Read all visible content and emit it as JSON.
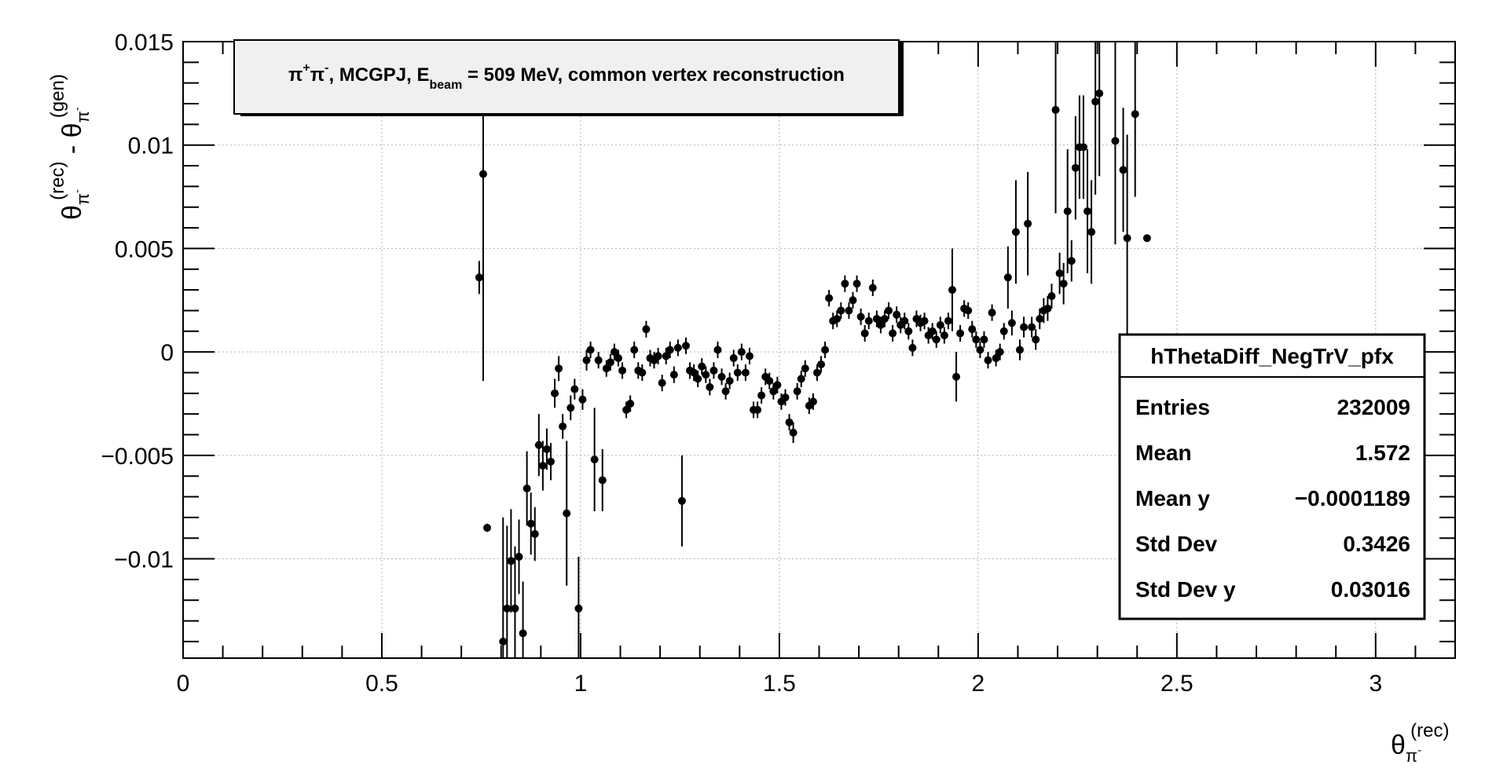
{
  "chart_data": {
    "type": "scatter",
    "title": "π⁺π⁻, MCGPJ, E_beam = 509 MeV, common vertex reconstruction",
    "title_parts": {
      "pre": "π",
      "sup1": "+",
      "mid1": "π",
      "sup2": "-",
      "mid2": ", MCGPJ, E",
      "sub": "beam",
      "post": " = 509 MeV, common vertex reconstruction"
    },
    "xlabel": {
      "base": "θ",
      "sub": "π",
      "subsup": "-",
      "sup": "(rec)"
    },
    "ylabel": {
      "base1": "θ",
      "sub1": "π",
      "subsup1": "-",
      "sup1": "(rec)",
      "minus": " - ",
      "base2": "θ",
      "sub2": "π",
      "subsup2": "-",
      "sup2": "(gen)"
    },
    "xlim": [
      0,
      3.2
    ],
    "ylim": [
      -0.0148,
      0.015
    ],
    "grid": true,
    "x_ticks": [
      0,
      0.5,
      1,
      1.5,
      2,
      2.5,
      3
    ],
    "x_tick_labels": [
      "0",
      "0.5",
      "1",
      "1.5",
      "2",
      "2.5",
      "3"
    ],
    "y_ticks": [
      -0.01,
      -0.005,
      0,
      0.005,
      0.01,
      0.015
    ],
    "y_tick_labels": [
      "−0.01",
      "−0.005",
      "0",
      "0.005",
      "0.01",
      "0.015"
    ],
    "stats_box": {
      "name": "hThetaDiff_NegTrV_pfx",
      "rows": [
        {
          "label": "Entries",
          "value": "232009"
        },
        {
          "label": "Mean",
          "value": "1.572"
        },
        {
          "label": "Mean y",
          "value": "−0.0001189"
        },
        {
          "label": "Std Dev",
          "value": "0.3426"
        },
        {
          "label": "Std Dev y",
          "value": "0.03016"
        }
      ]
    },
    "points": [
      [
        0.745,
        0.0036,
        0.0008
      ],
      [
        0.755,
        0.0086,
        0.01
      ],
      [
        0.765,
        -0.0085,
        0.0002
      ],
      [
        0.805,
        -0.014,
        0.006
      ],
      [
        0.815,
        -0.0124,
        0.004
      ],
      [
        0.825,
        -0.0101,
        0.0025
      ],
      [
        0.835,
        -0.0124,
        0.003
      ],
      [
        0.845,
        -0.0099,
        0.0018
      ],
      [
        0.855,
        -0.0136,
        0.0025
      ],
      [
        0.865,
        -0.0066,
        0.0018
      ],
      [
        0.875,
        -0.0083,
        0.0015
      ],
      [
        0.885,
        -0.0088,
        0.0013
      ],
      [
        0.895,
        -0.0045,
        0.0015
      ],
      [
        0.905,
        -0.0055,
        0.0012
      ],
      [
        0.915,
        -0.0047,
        0.001
      ],
      [
        0.925,
        -0.0053,
        0.0009
      ],
      [
        0.935,
        -0.002,
        0.0007
      ],
      [
        0.945,
        -0.0008,
        0.0006
      ],
      [
        0.955,
        -0.0036,
        0.0006
      ],
      [
        0.965,
        -0.0078,
        0.0035
      ],
      [
        0.975,
        -0.0027,
        0.0006
      ],
      [
        0.985,
        -0.0018,
        0.0005
      ],
      [
        0.995,
        -0.0124,
        0.0025
      ],
      [
        1.005,
        -0.0023,
        0.0005
      ],
      [
        1.015,
        -0.0004,
        0.0005
      ],
      [
        1.025,
        0.0001,
        0.0004
      ],
      [
        1.035,
        -0.0052,
        0.0025
      ],
      [
        1.045,
        -0.0004,
        0.0004
      ],
      [
        1.055,
        -0.0062,
        0.0015
      ],
      [
        1.065,
        -0.0008,
        0.0004
      ],
      [
        1.075,
        -0.0005,
        0.0004
      ],
      [
        1.085,
        0.0,
        0.0004
      ],
      [
        1.095,
        -0.0003,
        0.0004
      ],
      [
        1.105,
        -0.0009,
        0.0004
      ],
      [
        1.115,
        -0.0028,
        0.0004
      ],
      [
        1.125,
        -0.0025,
        0.0004
      ],
      [
        1.135,
        0.0001,
        0.0004
      ],
      [
        1.145,
        -0.0009,
        0.0004
      ],
      [
        1.155,
        -0.001,
        0.0004
      ],
      [
        1.165,
        0.0011,
        0.0004
      ],
      [
        1.175,
        -0.0003,
        0.0004
      ],
      [
        1.185,
        -0.0004,
        0.0004
      ],
      [
        1.195,
        -0.0002,
        0.0004
      ],
      [
        1.205,
        -0.0015,
        0.0004
      ],
      [
        1.215,
        -0.0002,
        0.0004
      ],
      [
        1.225,
        0.0001,
        0.0004
      ],
      [
        1.235,
        -0.0011,
        0.0004
      ],
      [
        1.245,
        0.0002,
        0.0004
      ],
      [
        1.255,
        -0.0072,
        0.0022
      ],
      [
        1.265,
        0.0003,
        0.0004
      ],
      [
        1.275,
        -0.0009,
        0.0004
      ],
      [
        1.285,
        -0.001,
        0.0004
      ],
      [
        1.295,
        -0.0013,
        0.0004
      ],
      [
        1.305,
        -0.0007,
        0.0004
      ],
      [
        1.315,
        -0.0011,
        0.0004
      ],
      [
        1.325,
        -0.0017,
        0.0004
      ],
      [
        1.335,
        -0.0009,
        0.0004
      ],
      [
        1.345,
        0.0001,
        0.0004
      ],
      [
        1.355,
        -0.0012,
        0.0004
      ],
      [
        1.365,
        -0.0019,
        0.0004
      ],
      [
        1.375,
        -0.0014,
        0.0004
      ],
      [
        1.385,
        -0.0003,
        0.0004
      ],
      [
        1.395,
        -0.001,
        0.0004
      ],
      [
        1.405,
        0.0,
        0.0004
      ],
      [
        1.415,
        -0.001,
        0.0004
      ],
      [
        1.425,
        -0.0002,
        0.0004
      ],
      [
        1.435,
        -0.0028,
        0.0004
      ],
      [
        1.445,
        -0.0028,
        0.0004
      ],
      [
        1.455,
        -0.0021,
        0.0004
      ],
      [
        1.465,
        -0.0012,
        0.0004
      ],
      [
        1.475,
        -0.0014,
        0.0004
      ],
      [
        1.485,
        -0.0019,
        0.0004
      ],
      [
        1.495,
        -0.0016,
        0.0004
      ],
      [
        1.505,
        -0.0024,
        0.0004
      ],
      [
        1.515,
        -0.0022,
        0.0004
      ],
      [
        1.525,
        -0.0034,
        0.0004
      ],
      [
        1.535,
        -0.0039,
        0.0005
      ],
      [
        1.545,
        -0.0019,
        0.0004
      ],
      [
        1.555,
        -0.0013,
        0.0004
      ],
      [
        1.565,
        -0.0008,
        0.0004
      ],
      [
        1.575,
        -0.0026,
        0.0004
      ],
      [
        1.585,
        -0.0024,
        0.0004
      ],
      [
        1.595,
        -0.001,
        0.0004
      ],
      [
        1.605,
        -0.0006,
        0.0004
      ],
      [
        1.615,
        0.0001,
        0.0004
      ],
      [
        1.625,
        0.0026,
        0.0004
      ],
      [
        1.635,
        0.0015,
        0.0004
      ],
      [
        1.645,
        0.0016,
        0.0004
      ],
      [
        1.655,
        0.002,
        0.0004
      ],
      [
        1.665,
        0.0033,
        0.0004
      ],
      [
        1.675,
        0.002,
        0.0004
      ],
      [
        1.685,
        0.0025,
        0.0004
      ],
      [
        1.695,
        0.0033,
        0.0004
      ],
      [
        1.705,
        0.0017,
        0.0004
      ],
      [
        1.715,
        0.0009,
        0.0004
      ],
      [
        1.725,
        0.0015,
        0.0004
      ],
      [
        1.735,
        0.0031,
        0.0004
      ],
      [
        1.745,
        0.0016,
        0.0004
      ],
      [
        1.755,
        0.0013,
        0.0004
      ],
      [
        1.765,
        0.0016,
        0.0004
      ],
      [
        1.775,
        0.002,
        0.0004
      ],
      [
        1.785,
        0.0009,
        0.0004
      ],
      [
        1.795,
        0.0018,
        0.0004
      ],
      [
        1.805,
        0.0013,
        0.0004
      ],
      [
        1.815,
        0.0015,
        0.0004
      ],
      [
        1.825,
        0.001,
        0.0004
      ],
      [
        1.835,
        0.0002,
        0.0004
      ],
      [
        1.845,
        0.0016,
        0.0004
      ],
      [
        1.855,
        0.0014,
        0.0004
      ],
      [
        1.865,
        0.0015,
        0.0004
      ],
      [
        1.875,
        0.0008,
        0.0004
      ],
      [
        1.885,
        0.001,
        0.0004
      ],
      [
        1.895,
        0.0006,
        0.0004
      ],
      [
        1.905,
        0.0013,
        0.0004
      ],
      [
        1.915,
        0.0008,
        0.0004
      ],
      [
        1.925,
        0.0015,
        0.0004
      ],
      [
        1.935,
        0.003,
        0.002
      ],
      [
        1.945,
        -0.0012,
        0.0012
      ],
      [
        1.955,
        0.0009,
        0.0004
      ],
      [
        1.965,
        0.0021,
        0.0004
      ],
      [
        1.975,
        0.002,
        0.0004
      ],
      [
        1.985,
        0.0011,
        0.0004
      ],
      [
        1.995,
        0.0006,
        0.0004
      ],
      [
        2.005,
        0.0001,
        0.0004
      ],
      [
        2.015,
        0.0006,
        0.0004
      ],
      [
        2.025,
        -0.0004,
        0.0004
      ],
      [
        2.035,
        0.0019,
        0.0004
      ],
      [
        2.045,
        -0.0003,
        0.0004
      ],
      [
        2.055,
        0.0,
        0.0004
      ],
      [
        2.065,
        0.001,
        0.0004
      ],
      [
        2.075,
        0.0036,
        0.0015
      ],
      [
        2.085,
        0.0014,
        0.0006
      ],
      [
        2.095,
        0.0058,
        0.0025
      ],
      [
        2.105,
        0.0001,
        0.0005
      ],
      [
        2.115,
        0.0012,
        0.0005
      ],
      [
        2.125,
        0.0062,
        0.0025
      ],
      [
        2.135,
        0.0012,
        0.0005
      ],
      [
        2.145,
        0.0006,
        0.0005
      ],
      [
        2.155,
        0.0016,
        0.0005
      ],
      [
        2.165,
        0.002,
        0.0006
      ],
      [
        2.175,
        0.0021,
        0.0006
      ],
      [
        2.185,
        0.0027,
        0.0006
      ],
      [
        2.195,
        0.0117,
        0.005
      ],
      [
        2.205,
        0.0038,
        0.001
      ],
      [
        2.215,
        0.0033,
        0.001
      ],
      [
        2.225,
        0.0068,
        0.003
      ],
      [
        2.235,
        0.0044,
        0.001
      ],
      [
        2.245,
        0.0089,
        0.0025
      ],
      [
        2.255,
        0.0099,
        0.0025
      ],
      [
        2.265,
        0.0099,
        0.0025
      ],
      [
        2.275,
        0.0068,
        0.003
      ],
      [
        2.285,
        0.0058,
        0.0025
      ],
      [
        2.295,
        0.0121,
        0.0045
      ],
      [
        2.305,
        0.0125,
        0.004
      ],
      [
        2.345,
        0.0102,
        0.005
      ],
      [
        2.365,
        0.0088,
        0.003
      ],
      [
        2.375,
        0.0055,
        0.005
      ],
      [
        2.395,
        0.0115,
        0.004
      ],
      [
        2.425,
        0.0055,
        0.0001
      ]
    ]
  }
}
